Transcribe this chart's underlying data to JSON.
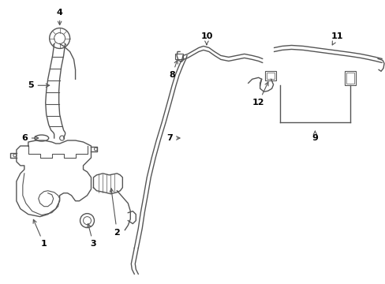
{
  "bg_color": "#ffffff",
  "line_color": "#555555",
  "fig_width": 4.89,
  "fig_height": 3.6,
  "dpi": 100
}
